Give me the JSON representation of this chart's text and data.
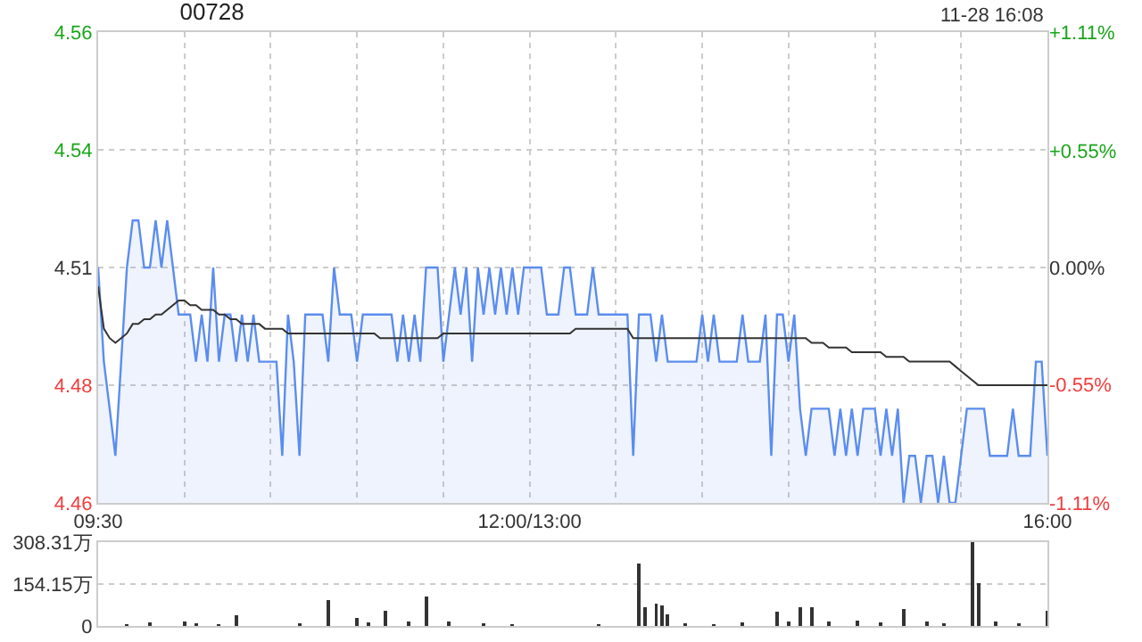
{
  "chart_data": [
    {
      "type": "area",
      "title": "00728",
      "annotations": [
        "11-28 16:08"
      ],
      "categories": [
        "09:30",
        null,
        null,
        null,
        null,
        null,
        null,
        null,
        null,
        null,
        null,
        null,
        null,
        null,
        null,
        null,
        null,
        null,
        null,
        null,
        null,
        null,
        null,
        null,
        null,
        null,
        null,
        null,
        null,
        null,
        null,
        null,
        null,
        null,
        null,
        null,
        null,
        null,
        null,
        null,
        null,
        null,
        null,
        null,
        null,
        null,
        null,
        null,
        null,
        null,
        null,
        null,
        null,
        null,
        null,
        null,
        null,
        null,
        null,
        null,
        null,
        null,
        null,
        null,
        null,
        null,
        null,
        null,
        null,
        null,
        null,
        null,
        null,
        null,
        null,
        "12:00/13:00",
        null,
        null,
        null,
        null,
        null,
        null,
        null,
        null,
        null,
        null,
        null,
        null,
        null,
        null,
        null,
        null,
        null,
        null,
        null,
        null,
        null,
        null,
        null,
        null,
        null,
        null,
        null,
        null,
        null,
        null,
        null,
        null,
        null,
        null,
        null,
        null,
        null,
        null,
        null,
        null,
        null,
        null,
        null,
        null,
        null,
        null,
        null,
        null,
        null,
        null,
        null,
        null,
        null,
        null,
        null,
        null,
        null,
        null,
        null,
        null,
        null,
        null,
        null,
        null,
        null,
        null,
        null,
        null,
        null,
        null,
        null,
        null,
        null,
        null,
        null,
        null,
        null,
        null,
        null,
        null,
        null,
        null,
        null,
        null,
        null,
        null,
        null,
        null,
        null,
        "16:00"
      ],
      "ylim": [
        4.46,
        4.56
      ],
      "yticks": [
        4.46,
        {
          "value": 4.485,
          "label": "4.48"
        },
        4.51,
        {
          "value": 4.535,
          "label": "4.54"
        },
        4.56
      ],
      "y2lim": [
        -1.11,
        1.11
      ],
      "y2ticks": [
        {
          "value": -1.11,
          "label": "-1.11%"
        },
        {
          "value": -0.55,
          "label": "-0.55%"
        },
        {
          "value": 0,
          "label": "0.00%"
        },
        {
          "value": 0.55,
          "label": "+0.55%"
        },
        {
          "value": 1.11,
          "label": "+1.11%"
        }
      ],
      "grid": true,
      "series": [
        {
          "color": "#5b8def",
          "values": [
            4.51,
            4.49,
            4.48,
            4.47,
            4.49,
            4.51,
            4.52,
            4.52,
            4.51,
            4.51,
            4.52,
            4.51,
            4.52,
            4.51,
            4.5,
            4.5,
            4.5,
            4.49,
            4.5,
            4.49,
            4.51,
            4.49,
            4.5,
            4.5,
            4.49,
            4.5,
            4.49,
            4.5,
            4.49,
            4.49,
            4.49,
            4.49,
            4.47,
            4.5,
            4.49,
            4.47,
            4.5,
            4.5,
            4.5,
            4.5,
            4.49,
            4.51,
            4.5,
            4.5,
            4.5,
            4.49,
            4.5,
            4.5,
            4.5,
            4.5,
            4.5,
            4.5,
            4.49,
            4.5,
            4.49,
            4.5,
            4.49,
            4.51,
            4.51,
            4.51,
            4.49,
            4.5,
            4.51,
            4.5,
            4.51,
            4.49,
            4.51,
            4.5,
            4.51,
            4.5,
            4.51,
            4.5,
            4.51,
            4.5,
            4.51,
            4.51,
            4.51,
            4.51,
            4.5,
            4.5,
            4.5,
            4.51,
            4.51,
            4.5,
            4.5,
            4.5,
            4.51,
            4.5,
            4.5,
            4.5,
            4.5,
            4.5,
            4.5,
            4.47,
            4.5,
            4.5,
            4.5,
            4.49,
            4.5,
            4.49,
            4.49,
            4.49,
            4.49,
            4.49,
            4.49,
            4.5,
            4.49,
            4.5,
            4.49,
            4.49,
            4.49,
            4.49,
            4.5,
            4.49,
            4.49,
            4.49,
            4.5,
            4.47,
            4.5,
            4.5,
            4.49,
            4.5,
            4.48,
            4.47,
            4.48,
            4.48,
            4.48,
            4.48,
            4.47,
            4.48,
            4.47,
            4.48,
            4.47,
            4.48,
            4.48,
            4.48,
            4.47,
            4.48,
            4.47,
            4.48,
            4.46,
            4.47,
            4.47,
            4.46,
            4.47,
            4.47,
            4.46,
            4.47,
            4.46,
            4.46,
            4.47,
            4.48,
            4.48,
            4.48,
            4.48,
            4.47,
            4.47,
            4.47,
            4.47,
            4.48,
            4.47,
            4.47,
            4.47,
            4.49,
            4.49,
            4.47
          ]
        },
        {
          "type": "line",
          "color": "#333333",
          "values": [
            4.506,
            4.497,
            4.495,
            4.494,
            4.495,
            4.496,
            4.498,
            4.498,
            4.499,
            4.499,
            4.5,
            4.5,
            4.501,
            4.502,
            4.503,
            4.503,
            4.502,
            4.502,
            4.501,
            4.501,
            4.501,
            4.5,
            4.5,
            4.499,
            4.499,
            4.498,
            4.498,
            4.498,
            4.498,
            4.497,
            4.497,
            4.497,
            4.497,
            4.496,
            4.496,
            4.496,
            4.496,
            4.496,
            4.496,
            4.496,
            4.496,
            4.496,
            4.496,
            4.496,
            4.496,
            4.496,
            4.496,
            4.496,
            4.496,
            4.495,
            4.495,
            4.495,
            4.495,
            4.495,
            4.495,
            4.495,
            4.495,
            4.495,
            4.495,
            4.495,
            4.496,
            4.496,
            4.496,
            4.496,
            4.496,
            4.496,
            4.496,
            4.496,
            4.496,
            4.496,
            4.496,
            4.496,
            4.496,
            4.496,
            4.496,
            4.496,
            4.496,
            4.496,
            4.496,
            4.496,
            4.496,
            4.496,
            4.496,
            4.497,
            4.497,
            4.497,
            4.497,
            4.497,
            4.497,
            4.497,
            4.497,
            4.497,
            4.497,
            4.495,
            4.495,
            4.495,
            4.495,
            4.495,
            4.495,
            4.495,
            4.495,
            4.495,
            4.495,
            4.495,
            4.495,
            4.495,
            4.495,
            4.495,
            4.495,
            4.495,
            4.495,
            4.495,
            4.495,
            4.495,
            4.495,
            4.495,
            4.495,
            4.495,
            4.495,
            4.495,
            4.495,
            4.495,
            4.495,
            4.495,
            4.494,
            4.494,
            4.494,
            4.493,
            4.493,
            4.493,
            4.493,
            4.492,
            4.492,
            4.492,
            4.492,
            4.492,
            4.492,
            4.491,
            4.491,
            4.491,
            4.491,
            4.49,
            4.49,
            4.49,
            4.49,
            4.49,
            4.49,
            4.49,
            4.49,
            4.489,
            4.488,
            4.487,
            4.486,
            4.485,
            4.485,
            4.485,
            4.485,
            4.485,
            4.485,
            4.485,
            4.485,
            4.485,
            4.485,
            4.485,
            4.485,
            4.485
          ]
        }
      ]
    },
    {
      "type": "bar",
      "tick_labels": "y",
      "grid": "y",
      "categories": [
        null,
        null,
        null,
        null,
        null,
        null,
        null,
        null,
        null,
        null,
        null,
        null,
        null,
        null,
        null,
        null,
        null,
        null,
        null,
        null,
        null,
        null,
        null,
        null,
        null,
        null,
        null,
        null,
        null,
        null,
        null,
        null,
        null,
        null,
        null,
        null,
        null,
        null,
        null,
        null,
        null,
        null,
        null,
        null,
        null,
        null,
        null,
        null,
        null,
        null,
        null,
        null,
        null,
        null,
        null,
        null,
        null,
        null,
        null,
        null,
        null,
        null,
        null,
        null,
        null,
        null,
        null,
        null,
        null,
        null,
        null,
        null,
        null,
        null,
        null,
        null,
        null,
        null,
        null,
        null,
        null,
        null,
        null,
        null,
        null,
        null,
        null,
        null,
        null,
        null,
        null,
        null,
        null,
        null,
        null,
        null,
        null,
        null,
        null,
        null,
        null,
        null,
        null,
        null,
        null,
        null,
        null,
        null,
        null,
        null,
        null,
        null,
        null,
        null,
        null,
        null,
        null,
        null,
        null,
        null,
        null,
        null,
        null,
        null,
        null,
        null,
        null,
        null,
        null,
        null,
        null,
        null,
        null,
        null,
        null,
        null,
        null,
        null,
        null,
        null,
        null,
        null,
        null,
        null,
        null,
        null,
        null,
        null,
        null,
        null,
        null,
        null,
        null,
        null,
        null,
        null,
        null,
        null,
        null,
        null,
        null,
        null,
        null,
        null,
        null,
        null
      ],
      "ylim": [
        0,
        308.31
      ],
      "yticks": [
        0,
        {
          "value": 154.15,
          "label": "154.15万"
        },
        {
          "value": 308.31,
          "label": "308.31万"
        }
      ],
      "series": [
        {
          "color": "#333333",
          "values": [
            null,
            null,
            null,
            null,
            null,
            6,
            null,
            null,
            null,
            12,
            null,
            null,
            null,
            null,
            null,
            15,
            null,
            10,
            null,
            null,
            null,
            8,
            null,
            null,
            39,
            null,
            null,
            null,
            null,
            null,
            null,
            null,
            null,
            null,
            null,
            10,
            null,
            null,
            null,
            null,
            95,
            null,
            null,
            null,
            null,
            31,
            null,
            12,
            null,
            null,
            57,
            null,
            null,
            null,
            18,
            null,
            null,
            108,
            null,
            null,
            null,
            15,
            null,
            null,
            null,
            null,
            null,
            10,
            null,
            null,
            null,
            null,
            8,
            null,
            null,
            null,
            null,
            null,
            null,
            null,
            null,
            null,
            null,
            null,
            null,
            null,
            null,
            8,
            null,
            null,
            null,
            null,
            null,
            null,
            231,
            69,
            null,
            82,
            77,
            44,
            null,
            null,
            10,
            null,
            null,
            null,
            null,
            8,
            null,
            null,
            null,
            null,
            12,
            null,
            null,
            null,
            null,
            null,
            51,
            null,
            15,
            null,
            69,
            null,
            69,
            null,
            null,
            15,
            null,
            null,
            null,
            null,
            20,
            null,
            null,
            null,
            12,
            null,
            null,
            null,
            62,
            null,
            null,
            null,
            15,
            null,
            null,
            10,
            null,
            null,
            null,
            null,
            308,
            159,
            null,
            null,
            15,
            null,
            null,
            null,
            10,
            null,
            null,
            null,
            null,
            57
          ]
        }
      ]
    }
  ]
}
